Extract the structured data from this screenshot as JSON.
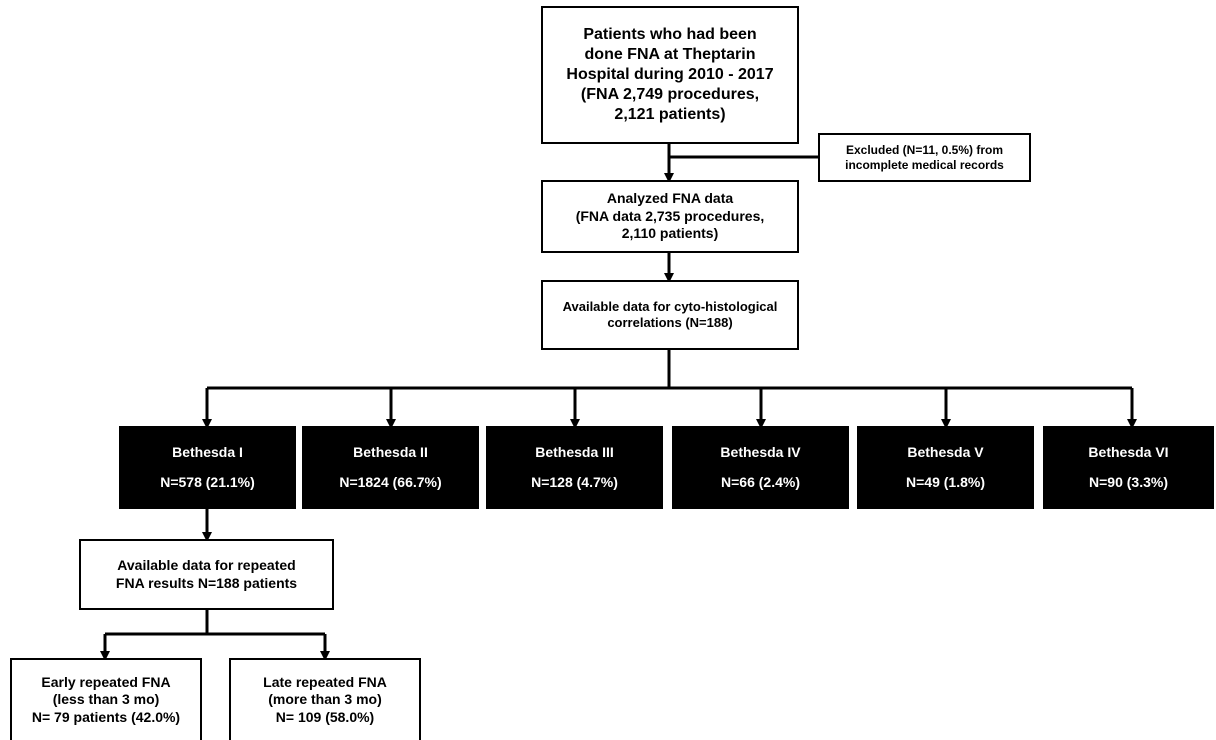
{
  "flowchart": {
    "top": [
      "Patients who had been",
      "done FNA at Theptarin",
      "Hospital during 2010 - 2017",
      "(FNA 2,749 procedures,",
      "2,121 patients)"
    ],
    "excluded": [
      "Excluded (N=11, 0.5%) from",
      "incomplete medical records"
    ],
    "analyzed": [
      "Analyzed FNA data",
      "(FNA data 2,735 procedures,",
      "2,110 patients)"
    ],
    "available": [
      "Available data for cyto-histological",
      "correlations (N=188)"
    ],
    "categories": [
      {
        "name": "Bethesda I",
        "count": "N=578 (21.1%)"
      },
      {
        "name": "Bethesda II",
        "count": "N=1824 (66.7%)"
      },
      {
        "name": "Bethesda III",
        "count": "N=128 (4.7%)"
      },
      {
        "name": "Bethesda IV",
        "count": "N=66 (2.4%)"
      },
      {
        "name": "Bethesda V",
        "count": "N=49 (1.8%)"
      },
      {
        "name": "Bethesda VI",
        "count": "N=90 (3.3%)"
      }
    ],
    "repeated": [
      "Available data for repeated",
      "FNA results N=188 patients"
    ],
    "early": [
      "Early repeated FNA",
      "(less than 3 mo)",
      "N= 79 patients (42.0%)"
    ],
    "late": [
      "Late repeated FNA",
      "(more than 3 mo)",
      "N= 109 (58.0%)"
    ]
  }
}
